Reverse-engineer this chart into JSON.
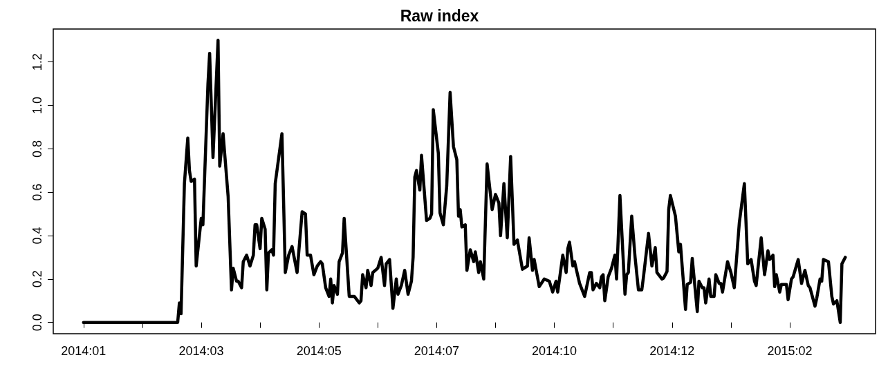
{
  "chart_data": {
    "type": "line",
    "title": "Raw index",
    "xlim": [
      "2013-12-14",
      "2015-04-17"
    ],
    "ylim": [
      -0.052,
      1.352
    ],
    "xticks": [
      {
        "value": "2014-01-01",
        "label": "2014:01"
      },
      {
        "value": "2014-02-05",
        "label": null
      },
      {
        "value": "2014-03-12",
        "label": "2014:03"
      },
      {
        "value": "2014-04-16",
        "label": null
      },
      {
        "value": "2014-05-21",
        "label": "2014:05"
      },
      {
        "value": "2014-06-25",
        "label": null
      },
      {
        "value": "2014-07-30",
        "label": "2014:07"
      },
      {
        "value": "2014-09-03",
        "label": null
      },
      {
        "value": "2014-10-08",
        "label": "2014:10"
      },
      {
        "value": "2014-11-12",
        "label": null
      },
      {
        "value": "2014-12-17",
        "label": "2014:12"
      },
      {
        "value": "2015-01-21",
        "label": null
      },
      {
        "value": "2015-02-25",
        "label": "2015:02"
      }
    ],
    "yticks": [
      {
        "value": 0,
        "label": "0.0"
      },
      0.2,
      0.4,
      0.6,
      0.8,
      {
        "value": 1,
        "label": "1.0"
      },
      1.2
    ],
    "grid": false,
    "marker": "none",
    "line_style": "solid",
    "series": [
      {
        "color": "#000000",
        "x": [
          "2014-01-01",
          "2014-02-26",
          "2014-02-27",
          "2014-02-28",
          "2014-03-02",
          "2014-03-04",
          "2014-03-05",
          "2014-03-06",
          "2014-03-08",
          "2014-03-09",
          "2014-03-12",
          "2014-03-13",
          "2014-03-16",
          "2014-03-17",
          "2014-03-19",
          "2014-03-22",
          "2014-03-23",
          "2014-03-25",
          "2014-03-28",
          "2014-03-30",
          "2014-03-31",
          "2014-04-02",
          "2014-04-03",
          "2014-04-05",
          "2014-04-06",
          "2014-04-08",
          "2014-04-10",
          "2014-04-12",
          "2014-04-13",
          "2014-04-14",
          "2014-04-16",
          "2014-04-17",
          "2014-04-19",
          "2014-04-20",
          "2014-04-21",
          "2014-04-23",
          "2014-04-24",
          "2014-04-25",
          "2014-04-29",
          "2014-05-01",
          "2014-05-03",
          "2014-05-05",
          "2014-05-08",
          "2014-05-11",
          "2014-05-13",
          "2014-05-14",
          "2014-05-16",
          "2014-05-18",
          "2014-05-20",
          "2014-05-22",
          "2014-05-23",
          "2014-05-25",
          "2014-05-27",
          "2014-05-28",
          "2014-05-29",
          "2014-05-30",
          "2014-06-01",
          "2014-06-02",
          "2014-06-04",
          "2014-06-05",
          "2014-06-08",
          "2014-06-11",
          "2014-06-14",
          "2014-06-15",
          "2014-06-16",
          "2014-06-18",
          "2014-06-19",
          "2014-06-21",
          "2014-06-22",
          "2014-06-25",
          "2014-06-27",
          "2014-06-29",
          "2014-06-30",
          "2014-07-02",
          "2014-07-04",
          "2014-07-06",
          "2014-07-07",
          "2014-07-09",
          "2014-07-11",
          "2014-07-13",
          "2014-07-15",
          "2014-07-16",
          "2014-07-17",
          "2014-07-18",
          "2014-07-20",
          "2014-07-21",
          "2014-07-24",
          "2014-07-26",
          "2014-07-27",
          "2014-07-28",
          "2014-07-31",
          "2014-08-01",
          "2014-08-03",
          "2014-08-05",
          "2014-08-07",
          "2014-08-09",
          "2014-08-11",
          "2014-08-12",
          "2014-08-13",
          "2014-08-14",
          "2014-08-16",
          "2014-08-17",
          "2014-08-19",
          "2014-08-21",
          "2014-08-22",
          "2014-08-24",
          "2014-08-25",
          "2014-08-27",
          "2014-08-29",
          "2014-09-01",
          "2014-09-03",
          "2014-09-05",
          "2014-09-06",
          "2014-09-08",
          "2014-09-10",
          "2014-09-12",
          "2014-09-14",
          "2014-09-16",
          "2014-09-19",
          "2014-09-22",
          "2014-09-23",
          "2014-09-25",
          "2014-09-26",
          "2014-09-29",
          "2014-10-02",
          "2014-10-05",
          "2014-10-07",
          "2014-10-09",
          "2014-10-10",
          "2014-10-13",
          "2014-10-15",
          "2014-10-16",
          "2014-10-17",
          "2014-10-19",
          "2014-10-20",
          "2014-10-23",
          "2014-10-26",
          "2014-10-29",
          "2014-10-30",
          "2014-10-31",
          "2014-11-02",
          "2014-11-04",
          "2014-11-05",
          "2014-11-06",
          "2014-11-07",
          "2014-11-09",
          "2014-11-11",
          "2014-11-13",
          "2014-11-14",
          "2014-11-16",
          "2014-11-19",
          "2014-11-20",
          "2014-11-21",
          "2014-11-23",
          "2014-11-25",
          "2014-11-27",
          "2014-11-29",
          "2014-11-30",
          "2014-12-03",
          "2014-12-05",
          "2014-12-07",
          "2014-12-08",
          "2014-12-11",
          "2014-12-12",
          "2014-12-14",
          "2014-12-15",
          "2014-12-16",
          "2014-12-19",
          "2014-12-21",
          "2014-12-22",
          "2014-12-25",
          "2014-12-26",
          "2014-12-28",
          "2014-12-29",
          "2015-01-01",
          "2015-01-02",
          "2015-01-04",
          "2015-01-05",
          "2015-01-06",
          "2015-01-08",
          "2015-01-09",
          "2015-01-11",
          "2015-01-12",
          "2015-01-14",
          "2015-01-15",
          "2015-01-16",
          "2015-01-19",
          "2015-01-21",
          "2015-01-23",
          "2015-01-26",
          "2015-01-29",
          "2015-01-31",
          "2015-02-02",
          "2015-02-04",
          "2015-02-05",
          "2015-02-08",
          "2015-02-10",
          "2015-02-12",
          "2015-02-13",
          "2015-02-15",
          "2015-02-16",
          "2015-02-17",
          "2015-02-19",
          "2015-02-20",
          "2015-02-23",
          "2015-02-24",
          "2015-02-26",
          "2015-02-27",
          "2015-03-02",
          "2015-03-04",
          "2015-03-06",
          "2015-03-08",
          "2015-03-09",
          "2015-03-12",
          "2015-03-13",
          "2015-03-15",
          "2015-03-16",
          "2015-03-17",
          "2015-03-20",
          "2015-03-22",
          "2015-03-23",
          "2015-03-25",
          "2015-03-27",
          "2015-03-28",
          "2015-03-30"
        ],
        "values": [
          0,
          0,
          0.09,
          0.04,
          0.64,
          0.85,
          0.7,
          0.65,
          0.66,
          0.26,
          0.48,
          0.45,
          1.1,
          1.24,
          0.76,
          1.3,
          0.72,
          0.87,
          0.58,
          0.15,
          0.25,
          0.19,
          0.19,
          0.16,
          0.28,
          0.31,
          0.26,
          0.31,
          0.45,
          0.45,
          0.34,
          0.48,
          0.43,
          0.15,
          0.32,
          0.335,
          0.31,
          0.64,
          0.87,
          0.23,
          0.31,
          0.35,
          0.23,
          0.51,
          0.5,
          0.31,
          0.31,
          0.22,
          0.26,
          0.28,
          0.27,
          0.16,
          0.12,
          0.2,
          0.09,
          0.17,
          0.13,
          0.28,
          0.32,
          0.48,
          0.12,
          0.12,
          0.09,
          0.1,
          0.22,
          0.16,
          0.24,
          0.17,
          0.23,
          0.25,
          0.3,
          0.17,
          0.27,
          0.29,
          0.065,
          0.2,
          0.13,
          0.17,
          0.24,
          0.13,
          0.19,
          0.3,
          0.67,
          0.7,
          0.61,
          0.77,
          0.47,
          0.48,
          0.5,
          0.98,
          0.78,
          0.505,
          0.45,
          0.63,
          1.06,
          0.81,
          0.75,
          0.49,
          0.52,
          0.44,
          0.45,
          0.24,
          0.335,
          0.28,
          0.325,
          0.23,
          0.28,
          0.2,
          0.73,
          0.52,
          0.59,
          0.55,
          0.4,
          0.64,
          0.39,
          0.765,
          0.36,
          0.38,
          0.245,
          0.26,
          0.39,
          0.24,
          0.29,
          0.165,
          0.2,
          0.19,
          0.14,
          0.19,
          0.14,
          0.31,
          0.23,
          0.34,
          0.37,
          0.26,
          0.28,
          0.18,
          0.12,
          0.23,
          0.23,
          0.15,
          0.18,
          0.16,
          0.21,
          0.22,
          0.1,
          0.21,
          0.25,
          0.31,
          0.2,
          0.585,
          0.13,
          0.22,
          0.23,
          0.49,
          0.3,
          0.15,
          0.15,
          0.21,
          0.41,
          0.26,
          0.345,
          0.23,
          0.2,
          0.205,
          0.235,
          0.52,
          0.585,
          0.49,
          0.325,
          0.36,
          0.06,
          0.175,
          0.185,
          0.295,
          0.05,
          0.19,
          0.16,
          0.16,
          0.09,
          0.2,
          0.12,
          0.12,
          0.22,
          0.18,
          0.18,
          0.14,
          0.28,
          0.23,
          0.16,
          0.46,
          0.64,
          0.27,
          0.29,
          0.19,
          0.17,
          0.39,
          0.22,
          0.33,
          0.29,
          0.31,
          0.165,
          0.22,
          0.14,
          0.175,
          0.175,
          0.105,
          0.2,
          0.21,
          0.29,
          0.18,
          0.24,
          0.17,
          0.16,
          0.075,
          0.11,
          0.2,
          0.19,
          0.29,
          0.28,
          0.12,
          0.085,
          0.1,
          0,
          0.27,
          0.3
        ]
      }
    ]
  }
}
